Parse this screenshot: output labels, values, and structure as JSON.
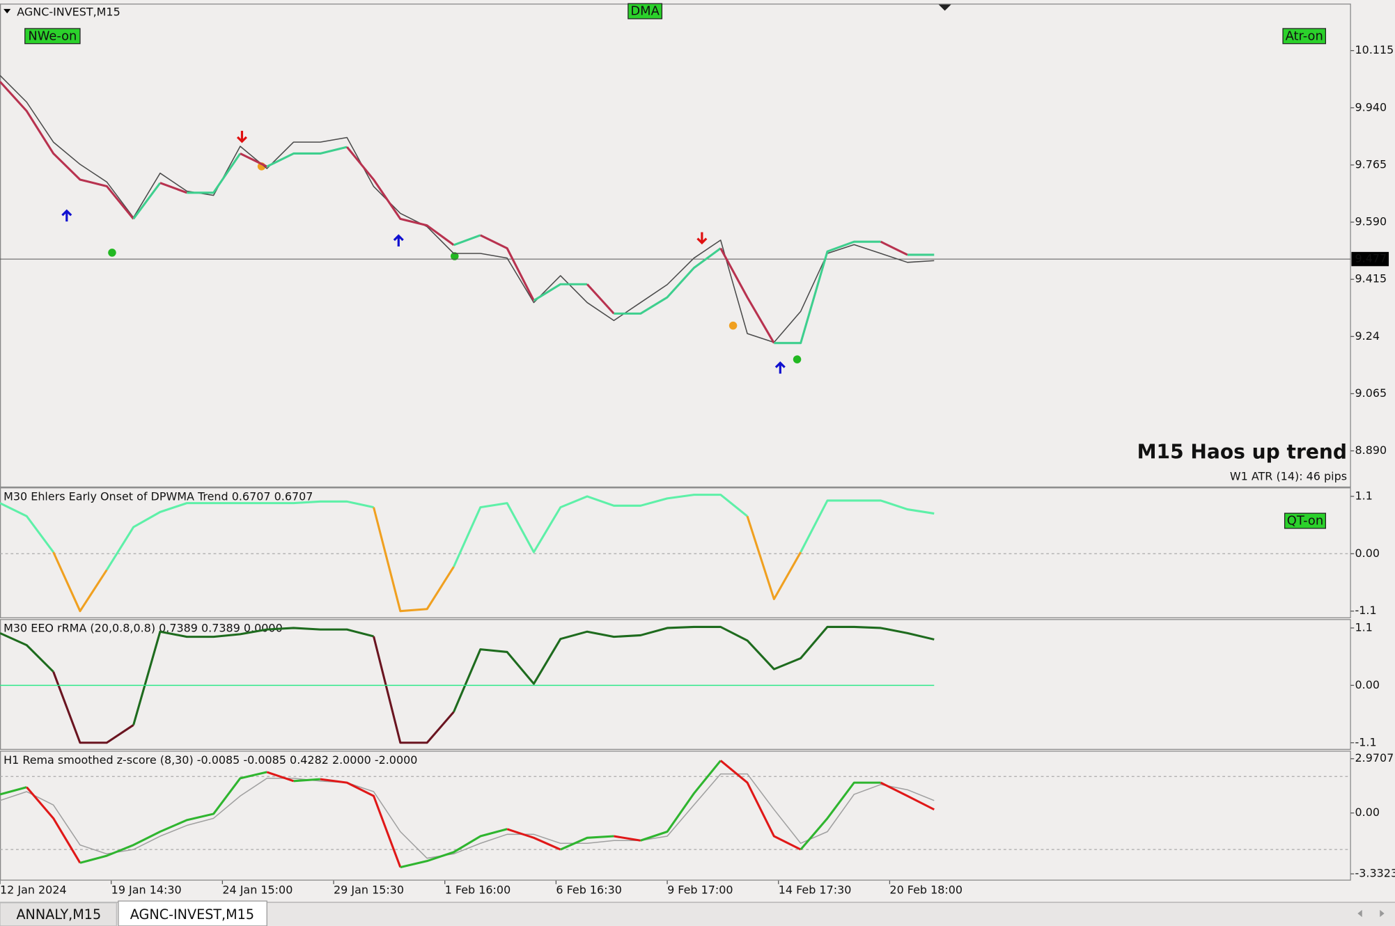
{
  "tabs": [
    "ANNALY,M15",
    "AGNC-INVEST,M15"
  ],
  "chart_data": [
    {
      "type": "line",
      "title": "AGNC-INVEST,M15",
      "buttons": [
        "DMA",
        "NWe-on",
        "Atr-on"
      ],
      "annotations": [
        "M15 Haos up trend",
        "W1 ATR (14): 46 pips"
      ],
      "x": [
        0,
        3,
        6,
        9,
        12,
        15,
        18,
        21,
        24,
        27,
        30,
        33,
        36,
        39,
        42,
        45,
        48,
        51,
        54,
        57,
        60,
        63,
        66,
        69,
        72,
        75,
        78,
        81,
        84,
        87,
        90,
        93,
        96,
        99,
        102,
        105
      ],
      "xlim": [
        0,
        151.8
      ],
      "ylim": [
        8.778,
        10.256
      ],
      "yticks": [
        {
          "value": 8.89,
          "label": "8.890"
        },
        9.065,
        9.24,
        9.415,
        {
          "value": 9.59,
          "label": "9.590"
        },
        9.765,
        {
          "value": 9.94,
          "label": "9.940"
        },
        10.115
      ],
      "current_price": 9.477,
      "series": [
        {
          "color": "#4a4a4a",
          "values": [
            10.039,
            9.957,
            9.835,
            9.767,
            9.713,
            9.604,
            9.74,
            9.685,
            9.672,
            9.822,
            9.754,
            9.835,
            9.835,
            9.849,
            9.699,
            9.617,
            9.576,
            9.494,
            9.494,
            9.48,
            9.344,
            9.426,
            9.344,
            9.289,
            9.344,
            9.399,
            9.48,
            9.535,
            9.249,
            9.222,
            9.317,
            9.494,
            9.521,
            9.494,
            9.467,
            9.472
          ]
        },
        {
          "color": "#3ecf8e",
          "down_color": "#b8324f",
          "color_rule": "slope",
          "values": [
            10.02,
            9.93,
            9.8,
            9.72,
            9.7,
            9.6,
            9.71,
            9.68,
            9.68,
            9.8,
            9.76,
            9.8,
            9.8,
            9.82,
            9.72,
            9.6,
            9.58,
            9.52,
            9.55,
            9.51,
            9.35,
            9.4,
            9.4,
            9.31,
            9.31,
            9.36,
            9.45,
            9.51,
            9.36,
            9.22,
            9.22,
            9.5,
            9.53,
            9.53,
            9.49,
            9.49
          ]
        }
      ]
    },
    {
      "type": "line",
      "title": "M30 Ehlers Early Onset of DPWMA Trend 0.6707 0.6707",
      "buttons": [
        "QT-on"
      ],
      "x": [
        0,
        3,
        6,
        9,
        12,
        15,
        18,
        21,
        24,
        27,
        30,
        33,
        36,
        39,
        42,
        45,
        48,
        51,
        54,
        57,
        60,
        63,
        66,
        69,
        72,
        75,
        78,
        81,
        84,
        87,
        90,
        93,
        96,
        99,
        102,
        105
      ],
      "xlim": [
        0,
        151.8
      ],
      "ylim": [
        -1.236,
        1.27
      ],
      "yticks": [
        -1.1,
        {
          "value": 0,
          "label": "0.00"
        },
        1.1
      ],
      "levels": [
        0
      ],
      "series": [
        {
          "color": "#5ef0a8",
          "down_color": "#f0a020",
          "color_rule": "sign",
          "values": [
            0.97,
            0.72,
            0.03,
            -1.1,
            -0.31,
            0.51,
            0.8,
            0.97,
            0.97,
            0.97,
            0.97,
            0.97,
            1.0,
            1.0,
            0.89,
            -1.1,
            -1.06,
            -0.25,
            0.89,
            0.97,
            0.03,
            0.89,
            1.1,
            0.92,
            0.92,
            1.06,
            1.13,
            1.13,
            0.72,
            -0.87,
            0.03,
            1.02,
            1.02,
            1.02,
            0.85,
            0.77
          ]
        }
      ]
    },
    {
      "type": "line",
      "title": "M30 EEO rRMA (20,0.8,0.8) 0.7389 0.7389 0.0000",
      "x": [
        0,
        3,
        6,
        9,
        12,
        15,
        18,
        21,
        24,
        27,
        30,
        33,
        36,
        39,
        42,
        45,
        48,
        51,
        54,
        57,
        60,
        63,
        66,
        69,
        72,
        75,
        78,
        81,
        84,
        87,
        90,
        93,
        96,
        99,
        102,
        105
      ],
      "xlim": [
        0,
        151.8
      ],
      "ylim": [
        -1.236,
        1.27
      ],
      "yticks": [
        -1.1,
        {
          "value": 0,
          "label": "0.00"
        },
        1.1
      ],
      "series": [
        {
          "color": "#1e6b1e",
          "down_color": "#6a1420",
          "color_rule": "sign",
          "values": [
            1.0,
            0.77,
            0.26,
            -1.1,
            -1.1,
            -0.76,
            1.03,
            0.93,
            0.93,
            0.98,
            1.07,
            1.1,
            1.07,
            1.07,
            0.94,
            -1.1,
            -1.1,
            -0.51,
            0.69,
            0.64,
            0.03,
            0.89,
            1.03,
            0.93,
            0.96,
            1.1,
            1.12,
            1.12,
            0.86,
            0.31,
            0.52,
            1.12,
            1.12,
            1.1,
            1.0,
            0.88
          ]
        },
        {
          "color": "#2ee88a",
          "values": [
            0,
            0,
            0,
            0,
            0,
            0,
            0,
            0,
            0,
            0,
            0,
            0,
            0,
            0,
            0,
            0,
            0,
            0,
            0,
            0,
            0,
            0,
            0,
            0,
            0,
            0,
            0,
            0,
            0,
            0,
            0,
            0,
            0,
            0,
            0,
            0
          ]
        }
      ]
    },
    {
      "type": "line",
      "title": "H1 Rema smoothed z-score (8,30) -0.0085 -0.0085 0.4282 2.0000 -2.0000",
      "x": [
        0,
        3,
        6,
        9,
        12,
        15,
        18,
        21,
        24,
        27,
        30,
        33,
        36,
        39,
        42,
        45,
        48,
        51,
        54,
        57,
        60,
        63,
        66,
        69,
        72,
        75,
        78,
        81,
        84,
        87,
        90,
        93,
        96,
        99,
        102,
        105
      ],
      "xlim": [
        0,
        151.8
      ],
      "ylim": [
        -3.7,
        3.36
      ],
      "yticks": [
        -3.3323,
        {
          "value": 0,
          "label": "0.00"
        },
        2.9707
      ],
      "levels": [
        2,
        -2
      ],
      "xticks": [
        {
          "value": 0,
          "label": "12 Jan 2024"
        },
        {
          "value": 12.5,
          "label": "19 Jan 14:30"
        },
        {
          "value": 25,
          "label": "24 Jan 15:00"
        },
        {
          "value": 37.5,
          "label": "29 Jan 15:30"
        },
        {
          "value": 50,
          "label": "1 Feb 16:00"
        },
        {
          "value": 62.5,
          "label": "6 Feb 16:30"
        },
        {
          "value": 75,
          "label": "9 Feb 17:00"
        },
        {
          "value": 87.5,
          "label": "14 Feb 17:30"
        },
        {
          "value": 100,
          "label": "20 Feb 18:00"
        }
      ],
      "series": [
        {
          "color": "#a0a0a0",
          "values": [
            0.68,
            1.17,
            0.44,
            -1.75,
            -2.24,
            -2.0,
            -1.27,
            -0.68,
            -0.29,
            0.93,
            1.9,
            1.9,
            1.75,
            1.66,
            1.17,
            -1.02,
            -2.48,
            -2.24,
            -1.66,
            -1.17,
            -1.17,
            -1.66,
            -1.66,
            -1.51,
            -1.51,
            -1.27,
            0.44,
            2.14,
            2.14,
            0.19,
            -1.66,
            -1.02,
            1.02,
            1.56,
            1.27,
            0.68
          ]
        },
        {
          "color": "#2fb52f",
          "down_color": "#e01818",
          "color_rule": "slope",
          "values": [
            1.02,
            1.41,
            -0.29,
            -2.73,
            -2.34,
            -1.75,
            -1.02,
            -0.39,
            -0.05,
            1.9,
            2.24,
            1.75,
            1.85,
            1.66,
            0.93,
            -2.97,
            -2.63,
            -2.14,
            -1.27,
            -0.88,
            -1.36,
            -2.0,
            -1.36,
            -1.27,
            -1.51,
            -1.02,
            1.07,
            2.87,
            1.66,
            -1.27,
            -2.0,
            -0.29,
            1.66,
            1.66,
            0.93,
            0.19
          ]
        }
      ]
    }
  ]
}
